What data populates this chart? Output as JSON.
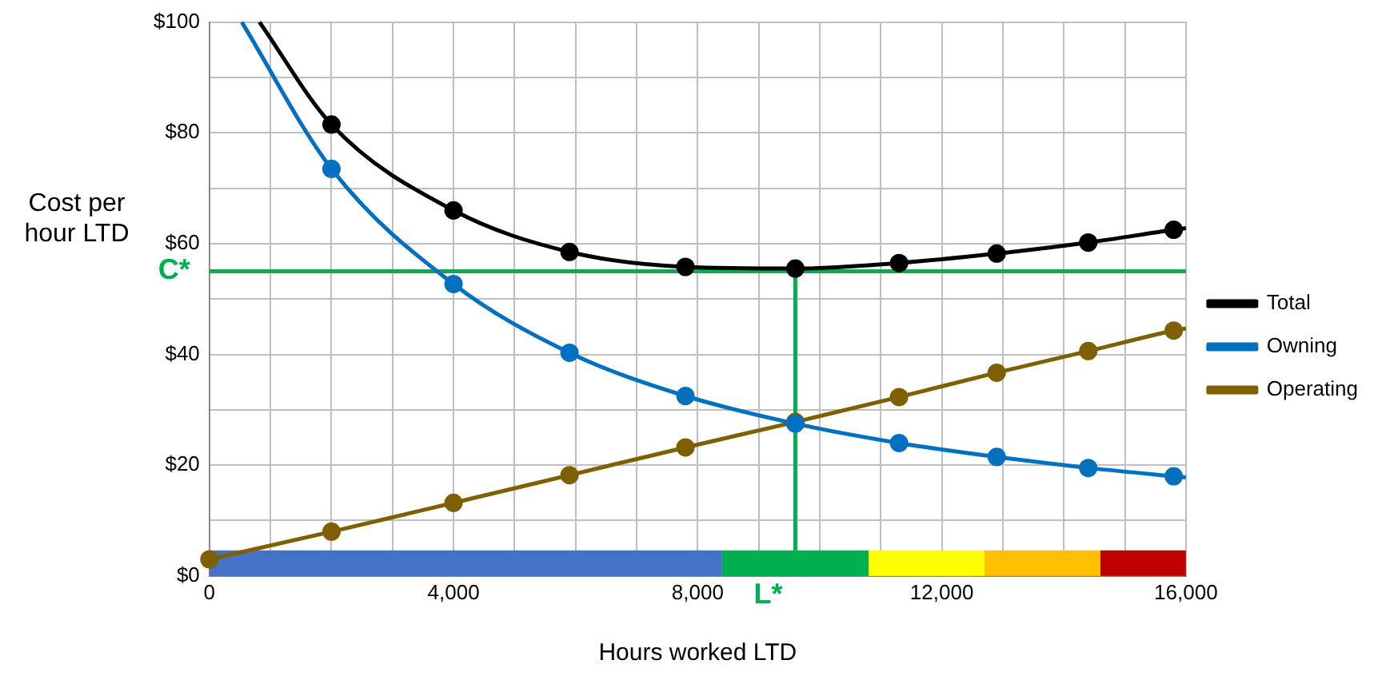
{
  "chart_data": {
    "type": "line",
    "xlabel": "Hours worked LTD",
    "ylabel": "Cost per hour LTD",
    "series": [
      {
        "name": "Total",
        "color": "#000000",
        "x": [
          820,
          2000,
          4000,
          5900,
          7800,
          9600,
          11300,
          12900,
          14400,
          15800,
          16000
        ],
        "values": [
          100,
          81.5,
          66,
          58.5,
          55.8,
          55.5,
          56.5,
          58.2,
          60.2,
          62.5,
          62.8
        ]
      },
      {
        "name": "Owning",
        "color": "#0070c0",
        "x": [
          530,
          2000,
          4000,
          5900,
          7800,
          9600,
          11300,
          12900,
          14400,
          15800,
          16000
        ],
        "values": [
          100,
          73.5,
          52.7,
          40.3,
          32.5,
          27.5,
          24,
          21.5,
          19.5,
          18,
          17.8
        ]
      },
      {
        "name": "Operating",
        "color": "#7f6000",
        "x": [
          0,
          2000,
          4000,
          5900,
          7800,
          9600,
          11300,
          12900,
          14400,
          15800,
          16000
        ],
        "values": [
          3,
          8,
          13.2,
          18.2,
          23.2,
          27.8,
          32.3,
          36.7,
          40.6,
          44.3,
          44.7
        ]
      }
    ],
    "marker": "circle",
    "line_style": "solid",
    "grid": true,
    "legend": "right",
    "xlim": [
      0,
      16000
    ],
    "xticks": [
      0,
      {
        "value": 1000,
        "label": null
      },
      {
        "value": 2000,
        "label": null
      },
      {
        "value": 3000,
        "label": null
      },
      {
        "value": 4000,
        "label": "4,000"
      },
      {
        "value": 5000,
        "label": null
      },
      {
        "value": 6000,
        "label": null
      },
      {
        "value": 7000,
        "label": null
      },
      {
        "value": 8000,
        "label": "8,000"
      },
      {
        "value": 9000,
        "label": null
      },
      {
        "value": 10000,
        "label": null
      },
      {
        "value": 11000,
        "label": null
      },
      {
        "value": 12000,
        "label": "12,000"
      },
      {
        "value": 13000,
        "label": null
      },
      {
        "value": 14000,
        "label": null
      },
      {
        "value": 15000,
        "label": null
      },
      {
        "value": 16000,
        "label": "16,000"
      }
    ],
    "ylim": [
      0,
      100
    ],
    "yticks": [
      {
        "value": 0,
        "label": "$0"
      },
      {
        "value": 10,
        "label": null
      },
      {
        "value": 20,
        "label": "$20"
      },
      {
        "value": 30,
        "label": null
      },
      {
        "value": 40,
        "label": "$40"
      },
      {
        "value": 50,
        "label": null
      },
      {
        "value": 60,
        "label": "$60"
      },
      {
        "value": 70,
        "label": null
      },
      {
        "value": 80,
        "label": "$80"
      },
      {
        "value": 90,
        "label": null
      },
      {
        "value": 100,
        "label": "$100"
      }
    ],
    "ref_lines": [
      {
        "axis": "y",
        "value": 55,
        "label": "C*",
        "color": "#00b050"
      },
      {
        "axis": "x",
        "value": 9600,
        "label": "L*",
        "color": "#00b050"
      }
    ],
    "bands": [
      {
        "axis": "x",
        "from": 0,
        "to": 8400,
        "color": "#4472c4"
      },
      {
        "axis": "x",
        "from": 8400,
        "to": 10800,
        "color": "#00b050"
      },
      {
        "axis": "x",
        "from": 10800,
        "to": 12700,
        "color": "#ffff00"
      },
      {
        "axis": "x",
        "from": 12700,
        "to": 14600,
        "color": "#ffc000"
      },
      {
        "axis": "x",
        "from": 14600,
        "to": 16000,
        "color": "#c00000"
      }
    ]
  }
}
